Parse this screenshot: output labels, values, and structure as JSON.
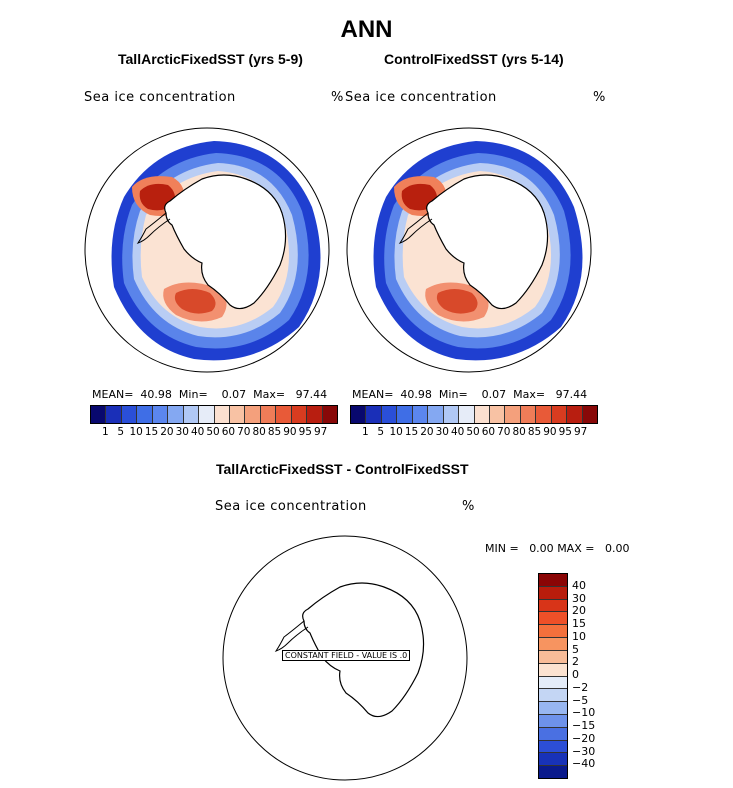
{
  "title": "ANN",
  "panels": [
    {
      "title": "TallArcticFixedSST (yrs 5-9)",
      "field_label": "Sea ice concentration",
      "units": "%",
      "stats": {
        "mean_label": "MEAN=",
        "mean": "40.98",
        "min_label": "Min=",
        "min": "0.07",
        "max_label": "Max=",
        "max": "97.44"
      }
    },
    {
      "title": "ControlFixedSST (yrs 5-14)",
      "field_label": "Sea ice concentration",
      "units": "%",
      "stats": {
        "mean_label": "MEAN=",
        "mean": "40.98",
        "min_label": "Min=",
        "min": "0.07",
        "max_label": "Max=",
        "max": "97.44"
      }
    }
  ],
  "top_colorbar": {
    "colors": [
      "#08086e",
      "#1a2fb8",
      "#2a4fd8",
      "#3f6ee6",
      "#5b86ee",
      "#84a8f2",
      "#b0c8f5",
      "#e6ecf8",
      "#fbe0d0",
      "#f8c2a4",
      "#f4a07c",
      "#ef7c58",
      "#e85a38",
      "#d83c20",
      "#b81e10",
      "#880808"
    ],
    "ticks": [
      "1",
      "5",
      "10",
      "15",
      "20",
      "30",
      "40",
      "50",
      "60",
      "70",
      "80",
      "85",
      "90",
      "95",
      "97"
    ]
  },
  "diff": {
    "title": "TallArcticFixedSST - ControlFixedSST",
    "field_label": "Sea ice concentration",
    "units": "%",
    "minmax": {
      "min_label": "MIN =",
      "min": "0.00",
      "max_label": "MAX =",
      "max": "0.00"
    },
    "constant_label": "CONSTANT FIELD - VALUE IS .0",
    "colorbar": {
      "colors": [
        "#8a0505",
        "#b81c0c",
        "#d83418",
        "#ee5028",
        "#f4703c",
        "#f79460",
        "#f8bc98",
        "#fbe2d0",
        "#e4ecf8",
        "#c4d6f4",
        "#98b6f0",
        "#6e92ea",
        "#4a70e2",
        "#2c4ed6",
        "#1832b8",
        "#0a1a8c"
      ],
      "labels": [
        "40",
        "30",
        "20",
        "15",
        "10",
        "5",
        "2",
        "0",
        "−2",
        "−5",
        "−10",
        "−15",
        "−20",
        "−30",
        "−40"
      ]
    }
  }
}
